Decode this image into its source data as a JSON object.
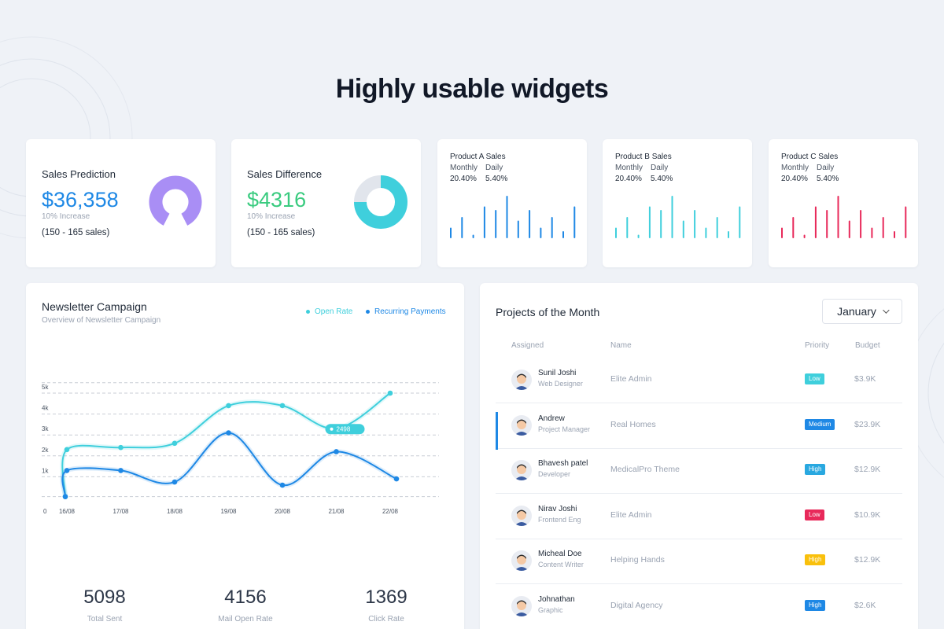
{
  "headline": "Highly usable widgets",
  "colors": {
    "blue": "#1e88e5",
    "green": "#39cb7f",
    "teal": "#3fcfdc",
    "purple": "#a98ef5",
    "red": "#e8295a",
    "light_gray": "#e1e5ec"
  },
  "sales_prediction": {
    "title": "Sales Prediction",
    "value": "$36,358",
    "sub": "10% Increase",
    "range": "(150 - 165 sales)",
    "chart_data": {
      "type": "gauge",
      "fill_fraction": 0.85,
      "color": "#a98ef5"
    }
  },
  "sales_difference": {
    "title": "Sales Difference",
    "value": "$4316",
    "sub": "10% Increase",
    "range": "(150 - 165 sales)",
    "chart_data": {
      "type": "pie",
      "values": [
        75,
        25
      ],
      "colors": [
        "#3fcfdc",
        "#e1e5ec"
      ]
    }
  },
  "products": [
    {
      "title": "Product A Sales",
      "monthly_label": "Monthly",
      "daily_label": "Daily",
      "monthly_value": "20.40%",
      "daily_value": "5.40%",
      "color": "#1e88e5",
      "chart_data": {
        "type": "bar",
        "values": [
          3,
          6,
          1,
          9,
          8,
          12,
          5,
          8,
          3,
          6,
          2,
          9
        ]
      }
    },
    {
      "title": "Product B Sales",
      "monthly_label": "Monthly",
      "daily_label": "Daily",
      "monthly_value": "20.40%",
      "daily_value": "5.40%",
      "color": "#3fcfdc",
      "chart_data": {
        "type": "bar",
        "values": [
          3,
          6,
          1,
          9,
          8,
          12,
          5,
          8,
          3,
          6,
          2,
          9
        ]
      }
    },
    {
      "title": "Product C Sales",
      "monthly_label": "Monthly",
      "daily_label": "Daily",
      "monthly_value": "20.40%",
      "daily_value": "5.40%",
      "color": "#e8295a",
      "chart_data": {
        "type": "bar",
        "values": [
          3,
          6,
          1,
          9,
          8,
          12,
          5,
          8,
          3,
          6,
          2,
          9
        ]
      }
    }
  ],
  "newsletter": {
    "title": "Newsletter Campaign",
    "subtitle": "Overview of Newsletter Campaign",
    "legend": [
      {
        "label": "Open Rate",
        "color": "#3fcfdc"
      },
      {
        "label": "Recurring Payments",
        "color": "#1e88e5"
      }
    ],
    "tooltip": "2498",
    "chart_data": {
      "type": "line",
      "y_ticks": [
        "1k",
        "2k",
        "3k",
        "4k",
        "5k"
      ],
      "x_ticks": [
        "0",
        "16/08",
        "17/08",
        "18/08",
        "19/08",
        "20/08",
        "21/08",
        "22/08"
      ],
      "ylim": [
        0,
        5.5
      ],
      "x": [
        0.4,
        1,
        2,
        3,
        4,
        5,
        6,
        7
      ],
      "series": [
        {
          "name": "Open Rate",
          "color": "#3fcfdc",
          "values": [
            0.05,
            2.3,
            2.4,
            2.6,
            4.4,
            4.4,
            3.3,
            5.0
          ]
        },
        {
          "name": "Recurring Payments",
          "color": "#1e88e5",
          "values": [
            0.05,
            1.3,
            1.3,
            0.75,
            3.1,
            0.6,
            2.2,
            0.9
          ]
        }
      ]
    },
    "kpis": [
      {
        "value": "5098",
        "label": "Total Sent"
      },
      {
        "value": "4156",
        "label": "Mail Open Rate"
      },
      {
        "value": "1369",
        "label": "Click Rate"
      }
    ]
  },
  "projects": {
    "title": "Projects of the Month",
    "month": "January",
    "headers": {
      "assigned": "Assigned",
      "name": "Name",
      "priority": "Priority",
      "budget": "Budget"
    },
    "rows": [
      {
        "name": "Sunil Joshi",
        "role": "Web Designer",
        "project": "Elite Admin",
        "priority": "Low",
        "priority_color": "#3fcfdc",
        "budget": "$3.9K",
        "avatar_icon": "man-hat-avatar-icon"
      },
      {
        "name": "Andrew",
        "role": "Project Manager",
        "project": "Real Homes",
        "priority": "Medium",
        "priority_color": "#1e88e5",
        "budget": "$23.9K",
        "avatar_icon": "man-avatar-icon"
      },
      {
        "name": "Bhavesh patel",
        "role": "Developer",
        "project": "MedicalPro Theme",
        "priority": "High",
        "priority_color": "#29a8e0",
        "budget": "$12.9K",
        "avatar_icon": "woman-avatar-icon"
      },
      {
        "name": "Nirav Joshi",
        "role": "Frontend Eng",
        "project": "Elite Admin",
        "priority": "Low",
        "priority_color": "#e8295a",
        "budget": "$10.9K",
        "avatar_icon": "man-avatar-icon"
      },
      {
        "name": "Micheal Doe",
        "role": "Content Writer",
        "project": "Helping Hands",
        "priority": "High",
        "priority_color": "#f9c00c",
        "budget": "$12.9K",
        "avatar_icon": "man-suit-avatar-icon"
      },
      {
        "name": "Johnathan",
        "role": "Graphic",
        "project": "Digital Agency",
        "priority": "High",
        "priority_color": "#1e88e5",
        "budget": "$2.6K",
        "avatar_icon": "woman-avatar-icon"
      }
    ]
  }
}
